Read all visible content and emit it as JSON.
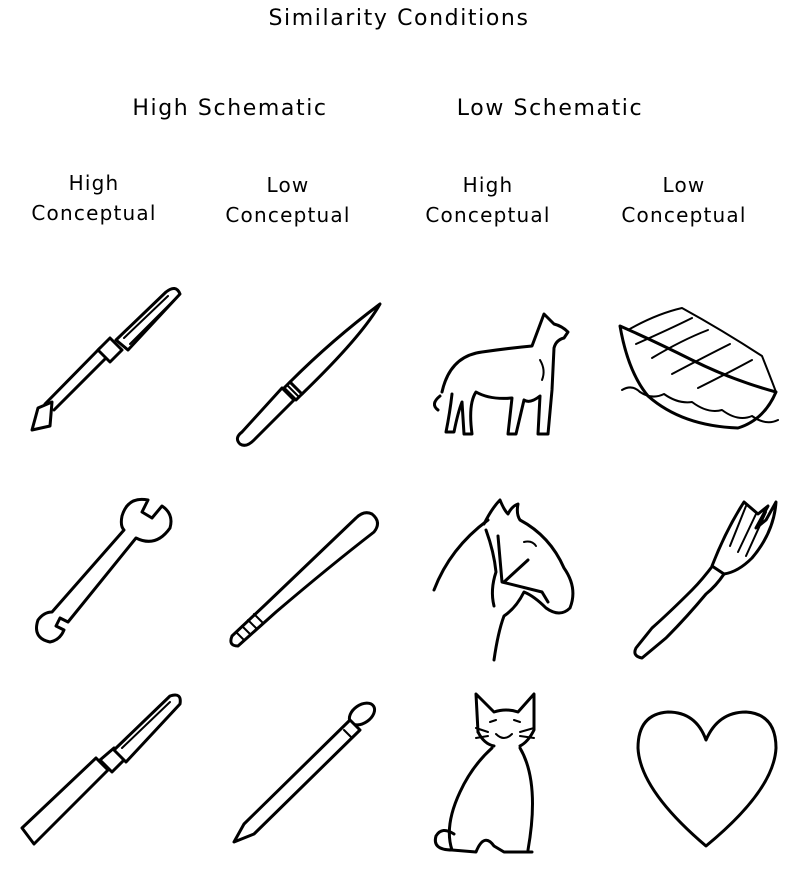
{
  "title": "Similarity Conditions",
  "groups": [
    {
      "label": "High Schematic"
    },
    {
      "label": "Low Schematic"
    }
  ],
  "columns": [
    {
      "line1": "High",
      "line2": "Conceptual"
    },
    {
      "line1": "Low",
      "line2": "Conceptual"
    },
    {
      "line1": "High",
      "line2": "Conceptual"
    },
    {
      "line1": "Low",
      "line2": "Conceptual"
    }
  ],
  "figures": [
    [
      "screwdriver-icon",
      "knife-icon",
      "dog-icon",
      "rowboat-icon"
    ],
    [
      "wrench-icon",
      "baseball-bat-icon",
      "horse-head-icon",
      "fork-icon"
    ],
    [
      "chisel-icon",
      "nail-icon",
      "cat-icon",
      "heart-icon"
    ]
  ]
}
